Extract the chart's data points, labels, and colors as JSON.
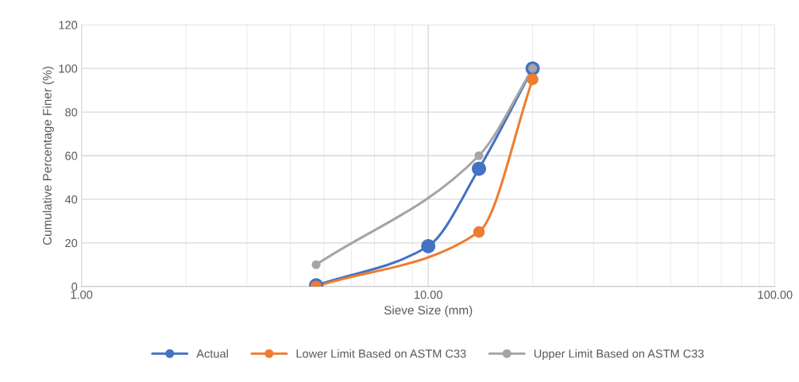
{
  "chart_data": {
    "type": "line",
    "xlabel": "Sieve Size (mm)",
    "ylabel": "Cumulative Percentage Finer (%)",
    "log": "x",
    "xlim": [
      1,
      100
    ],
    "xticks": [
      {
        "value": 1,
        "label": "1.00"
      },
      {
        "value": 10,
        "label": "10.00"
      },
      {
        "value": 100,
        "label": "100.00"
      }
    ],
    "ylim": [
      0,
      120
    ],
    "yticks": [
      0,
      20,
      40,
      60,
      80,
      100,
      120
    ],
    "grid": true,
    "legend": "bottom",
    "marker": "circle",
    "line_style": "solid",
    "series": [
      {
        "name": "Actual",
        "color": "#4472c4",
        "x": [
          4.75,
          10,
          14,
          20
        ],
        "values": [
          0.5,
          18.5,
          54,
          100
        ]
      },
      {
        "name": "Lower Limit Based on ASTM C33",
        "color": "#ed7d31",
        "x": [
          4.75,
          14,
          20
        ],
        "values": [
          0,
          25,
          95
        ]
      },
      {
        "name": "Upper Limit Based on ASTM C33",
        "color": "#a5a5a5",
        "x": [
          4.75,
          14,
          20
        ],
        "values": [
          10,
          60,
          100
        ]
      }
    ]
  }
}
